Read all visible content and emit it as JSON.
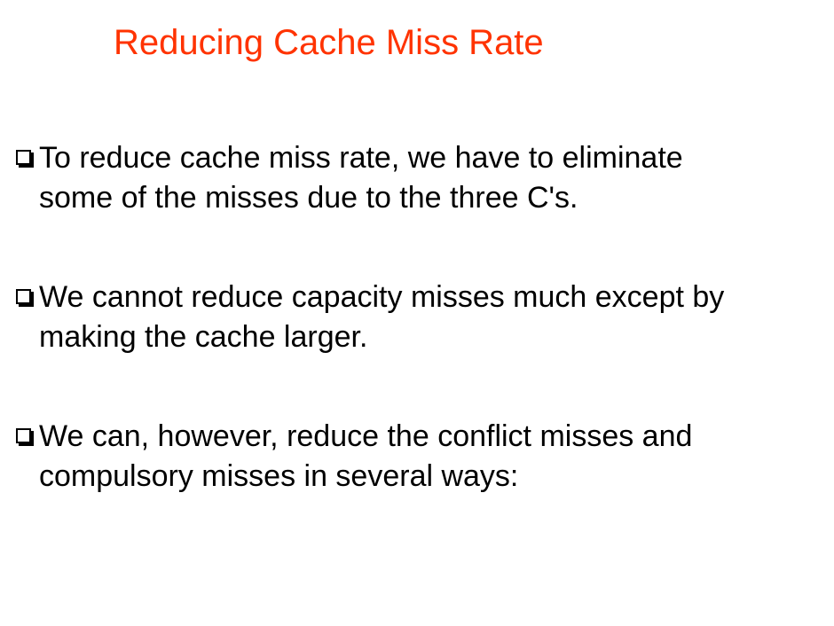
{
  "slide": {
    "title": "Reducing Cache Miss Rate",
    "bullets": [
      {
        "line1": "To reduce cache miss rate, we have to eliminate",
        "line2": "some of the misses due to the three C's."
      },
      {
        "line1": "We cannot reduce capacity misses much except by",
        "line2": "making the cache larger."
      },
      {
        "line1": "We can, however, reduce the conflict misses and",
        "line2": "compulsory misses in several ways:"
      }
    ]
  },
  "colors": {
    "title": "#ff3300",
    "text": "#000000",
    "background": "#ffffff"
  },
  "icons": {
    "bullet": "hollow-square-bullet-icon"
  }
}
